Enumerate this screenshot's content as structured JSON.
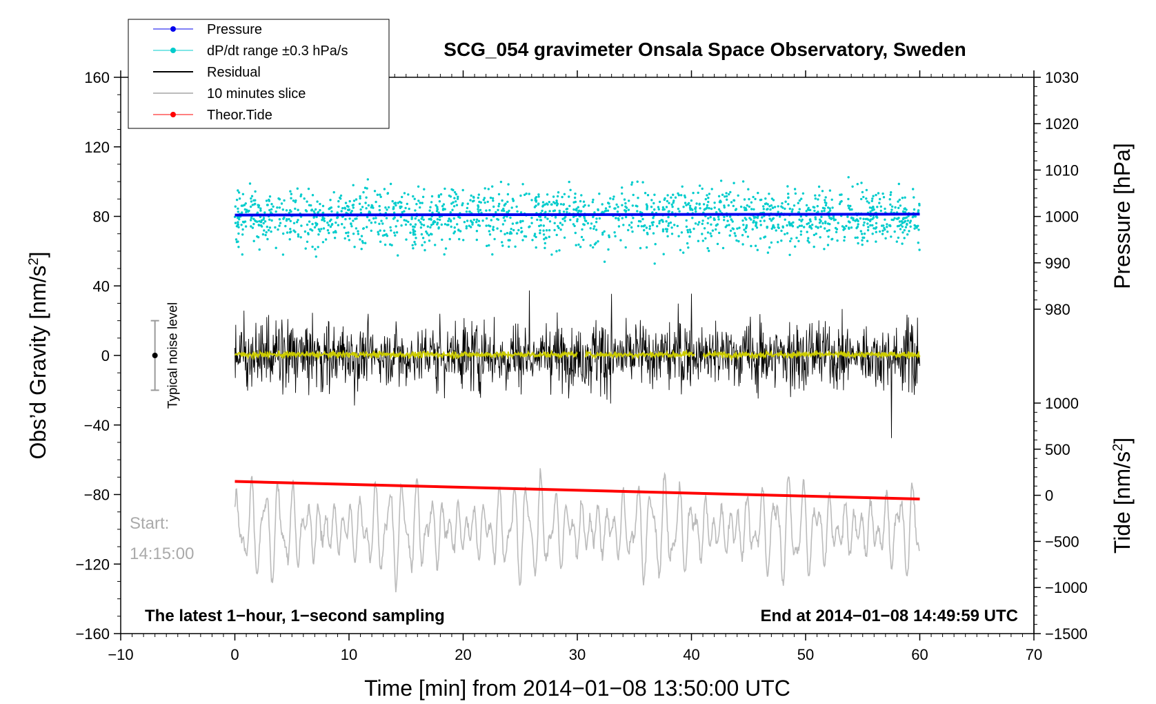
{
  "chart_data": {
    "type": "line",
    "title": "SCG_054 gravimeter Onsala Space Observatory, Sweden",
    "xlabel": "Time [min] from 2014−01−08 13:50:00 UTC",
    "ylabel_left": "Obs’d Gravity [nm/s",
    "ylabel_left_sup": "2",
    "ylabel_left_close": "]",
    "ylabel_right_pressure": "Pressure [hPa]",
    "ylabel_right_tide": "Tide [nm/s",
    "ylabel_right_tide_sup": "2",
    "ylabel_right_tide_close": "]",
    "xlim": [
      -10,
      70
    ],
    "ylim_gravity": [
      -160,
      160
    ],
    "ylim_pressure": [
      980,
      1030
    ],
    "ylim_tide": [
      -1500,
      1000
    ],
    "x_ticks": [
      "−10",
      "0",
      "10",
      "20",
      "30",
      "40",
      "50",
      "60",
      "70"
    ],
    "gravity_ticks": [
      "160",
      "120",
      "80",
      "40",
      "0",
      "−40",
      "−80",
      "−120",
      "−160"
    ],
    "pressure_ticks": [
      "1030",
      "1020",
      "1010",
      "1000",
      "990",
      "980"
    ],
    "tide_ticks": [
      "1000",
      "500",
      "0",
      "−500",
      "−1000",
      "−1500"
    ],
    "legend": [
      {
        "label": "Pressure",
        "color": "#0000ee",
        "marker": "dot"
      },
      {
        "label": "dP/dt range ±0.3 hPa/s",
        "color": "#00cccc",
        "marker": "dot"
      },
      {
        "label": "Residual",
        "color": "#000000",
        "marker": "line"
      },
      {
        "label": "10 minutes slice",
        "color": "#bbbbbb",
        "marker": "line"
      },
      {
        "label": "Theor.Tide",
        "color": "#ff0000",
        "marker": "dot"
      }
    ],
    "series": [
      {
        "name": "Pressure",
        "axis": "pressure",
        "x": [
          0,
          60
        ],
        "values": [
          1000.3,
          1000.5
        ]
      },
      {
        "name": "dP/dt range ±0.3 hPa/s",
        "axis": "pressure",
        "center": 1000,
        "spread": 5,
        "x_range": [
          0,
          60
        ]
      },
      {
        "name": "Residual",
        "axis": "gravity",
        "center": 0,
        "amplitude": 25,
        "x_range": [
          0,
          60
        ]
      },
      {
        "name": "10 minutes slice",
        "axis": "gravity",
        "center": -100,
        "amplitude": 30,
        "x_range": [
          0,
          60
        ]
      },
      {
        "name": "Theor.Tide",
        "axis": "tide",
        "x": [
          0,
          60
        ],
        "values": [
          150,
          -40
        ]
      }
    ],
    "noise_marker": {
      "label": "Typical noise level",
      "x": -7,
      "center": 0,
      "range": [
        -20,
        20
      ]
    },
    "start_label_line1": "Start:",
    "start_label_line2": "14:15:00",
    "footer_left": "The latest 1−hour, 1−second sampling",
    "footer_right": "End at 2014−01−08 14:49:59 UTC"
  }
}
